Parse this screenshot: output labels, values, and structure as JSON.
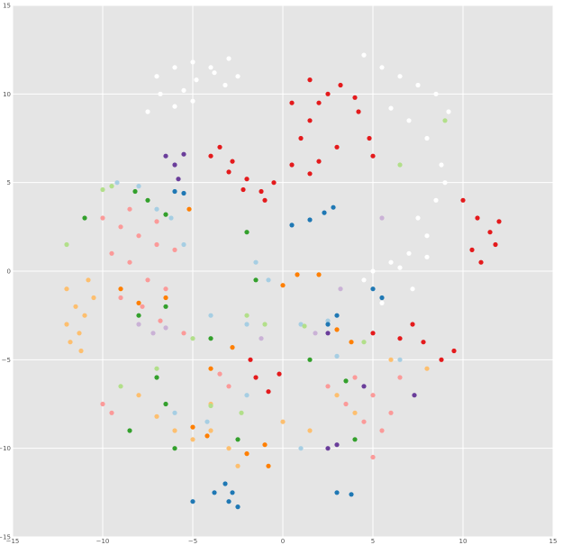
{
  "chart_data": {
    "type": "scatter",
    "title": "",
    "xlabel": "",
    "ylabel": "",
    "xlim": [
      -15,
      15
    ],
    "ylim": [
      -15,
      15
    ],
    "xticks": [
      -15,
      -10,
      -5,
      0,
      5,
      10,
      15
    ],
    "yticks": [
      -15,
      -10,
      -5,
      0,
      5,
      10,
      15
    ],
    "xtick_labels": [
      "−15",
      "−10",
      "−5",
      "0",
      "5",
      "10",
      "15"
    ],
    "ytick_labels": [
      "−15",
      "−10",
      "−5",
      "0",
      "5",
      "10",
      "15"
    ],
    "grid": true,
    "background": "#e5e5e5",
    "grid_color": "#ffffff",
    "series": [
      {
        "color": "#ffffff",
        "points": [
          [
            -7,
            11
          ],
          [
            -6,
            11.5
          ],
          [
            -5,
            11.8
          ],
          [
            -4,
            11.5
          ],
          [
            -3,
            12
          ],
          [
            -2.5,
            11
          ],
          [
            -5.5,
            10.2
          ],
          [
            -6.8,
            10
          ],
          [
            -4.8,
            10.8
          ],
          [
            -3.2,
            10.5
          ],
          [
            -7.5,
            9
          ],
          [
            -6,
            9.3
          ],
          [
            -5,
            9.6
          ],
          [
            -3.8,
            11.2
          ],
          [
            4.5,
            12.2
          ],
          [
            5.5,
            11.5
          ],
          [
            6.5,
            11
          ],
          [
            7.5,
            10.5
          ],
          [
            8.5,
            10
          ],
          [
            9.2,
            9
          ],
          [
            6,
            9.2
          ],
          [
            7,
            8.5
          ],
          [
            8,
            7.5
          ],
          [
            8.8,
            6
          ],
          [
            9,
            5
          ],
          [
            8.5,
            4
          ],
          [
            7.5,
            3
          ],
          [
            8,
            2
          ],
          [
            7,
            1
          ],
          [
            6,
            0.5
          ],
          [
            5,
            0
          ],
          [
            4.5,
            -0.5
          ],
          [
            6.5,
            0.2
          ],
          [
            8,
            0.8
          ],
          [
            7.2,
            -1
          ],
          [
            5.5,
            -1.8
          ]
        ]
      },
      {
        "color": "#e41a1c",
        "points": [
          [
            -3.5,
            7
          ],
          [
            -2.8,
            6.2
          ],
          [
            -2,
            5.2
          ],
          [
            -1.2,
            4.5
          ],
          [
            -4,
            6.5
          ],
          [
            -3,
            5.6
          ],
          [
            -2.2,
            4.6
          ],
          [
            -1,
            4
          ],
          [
            -0.5,
            5
          ],
          [
            0.5,
            6
          ],
          [
            1,
            7.5
          ],
          [
            1.5,
            8.5
          ],
          [
            2,
            9.5
          ],
          [
            2.5,
            10
          ],
          [
            3.2,
            10.5
          ],
          [
            4,
            9.8
          ],
          [
            4.2,
            9
          ],
          [
            4.8,
            7.5
          ],
          [
            5,
            6.5
          ],
          [
            3,
            7
          ],
          [
            2,
            6.2
          ],
          [
            1.5,
            5.5
          ],
          [
            0.5,
            9.5
          ],
          [
            1.5,
            10.8
          ],
          [
            10,
            4
          ],
          [
            10.8,
            3
          ],
          [
            11.5,
            2.2
          ],
          [
            11.8,
            1.5
          ],
          [
            11,
            0.5
          ],
          [
            12,
            2.8
          ],
          [
            10.5,
            1.2
          ],
          [
            -1.5,
            -6
          ],
          [
            -0.8,
            -6.8
          ],
          [
            -0.2,
            -5.8
          ],
          [
            -1.8,
            -5
          ],
          [
            5,
            -3.5
          ],
          [
            6.5,
            -3.8
          ],
          [
            7.8,
            -4
          ],
          [
            8.8,
            -5
          ],
          [
            9.5,
            -4.5
          ],
          [
            7.2,
            -3
          ]
        ]
      },
      {
        "color": "#fb9a99",
        "points": [
          [
            -10,
            3
          ],
          [
            -9,
            2.5
          ],
          [
            -8,
            2
          ],
          [
            -7,
            1.5
          ],
          [
            -9.5,
            1
          ],
          [
            -8.5,
            0.5
          ],
          [
            -7.5,
            -0.5
          ],
          [
            -6.5,
            -1
          ],
          [
            -9,
            -1.5
          ],
          [
            -7.8,
            -2
          ],
          [
            -6.8,
            -2.8
          ],
          [
            -5.5,
            -3.5
          ],
          [
            -8.5,
            3.5
          ],
          [
            -7,
            2.8
          ],
          [
            -6,
            1.2
          ],
          [
            -10,
            -7.5
          ],
          [
            -9.5,
            -8
          ],
          [
            -3.5,
            -5.8
          ],
          [
            -3,
            -6.5
          ],
          [
            4,
            -6
          ],
          [
            5,
            -7
          ],
          [
            6,
            -8
          ],
          [
            5.5,
            -9
          ],
          [
            4.5,
            -8.5
          ],
          [
            3.5,
            -7.5
          ],
          [
            6.5,
            -6
          ],
          [
            2.5,
            -6.5
          ],
          [
            5,
            -10.5
          ]
        ]
      },
      {
        "color": "#fdbf6f",
        "points": [
          [
            -12,
            -1
          ],
          [
            -11.5,
            -2
          ],
          [
            -12,
            -3
          ],
          [
            -11.8,
            -4
          ],
          [
            -11.2,
            -4.5
          ],
          [
            -11,
            -2.5
          ],
          [
            -10.5,
            -1.5
          ],
          [
            -11.3,
            -3.5
          ],
          [
            -10.8,
            -0.5
          ],
          [
            -8,
            -7
          ],
          [
            -7,
            -8.2
          ],
          [
            -6,
            -9
          ],
          [
            -5,
            -9.5
          ],
          [
            -4,
            -9
          ],
          [
            -3,
            -10
          ],
          [
            -2.5,
            -11
          ],
          [
            -4,
            -7.5
          ],
          [
            0,
            -8.5
          ],
          [
            1.5,
            -9
          ],
          [
            3,
            -7
          ],
          [
            4,
            -8
          ],
          [
            6,
            -5
          ],
          [
            8,
            -5.5
          ]
        ]
      },
      {
        "color": "#a6cee3",
        "points": [
          [
            -9.2,
            5
          ],
          [
            -8,
            4.8
          ],
          [
            -7,
            3.5
          ],
          [
            -6.2,
            3
          ],
          [
            -5.5,
            1.5
          ],
          [
            -1.5,
            0.5
          ],
          [
            -0.8,
            -0.5
          ],
          [
            -4,
            -2.5
          ],
          [
            -2,
            -3
          ],
          [
            1,
            -3
          ],
          [
            2.5,
            -2.8
          ],
          [
            -6,
            -8
          ],
          [
            -4.2,
            -8.5
          ],
          [
            -2,
            -7
          ],
          [
            1,
            -10
          ],
          [
            3,
            -4.8
          ],
          [
            6.5,
            -5
          ]
        ]
      },
      {
        "color": "#33a02c",
        "points": [
          [
            -8.2,
            4.5
          ],
          [
            -7.5,
            4
          ],
          [
            -6.5,
            3.2
          ],
          [
            -11,
            3
          ],
          [
            -8,
            -2.5
          ],
          [
            -6.5,
            -2
          ],
          [
            -4,
            -3.8
          ],
          [
            -1.5,
            -0.5
          ],
          [
            -7,
            -6
          ],
          [
            -6.5,
            -7.5
          ],
          [
            -8.5,
            -9
          ],
          [
            -6,
            -10
          ],
          [
            -2.5,
            -9.5
          ],
          [
            1.5,
            -5
          ],
          [
            3.5,
            -6.2
          ],
          [
            4,
            -9.5
          ],
          [
            -2,
            2.2
          ]
        ]
      },
      {
        "color": "#ff7f00",
        "points": [
          [
            -9,
            -1
          ],
          [
            -8,
            -1.8
          ],
          [
            -6.5,
            -1.5
          ],
          [
            -5.2,
            3.5
          ],
          [
            -4,
            -5.5
          ],
          [
            -2.8,
            -4.3
          ],
          [
            0,
            -0.8
          ],
          [
            0.8,
            -0.2
          ],
          [
            2,
            -0.2
          ],
          [
            3,
            -3.3
          ],
          [
            3.8,
            -4
          ],
          [
            -5,
            -8.8
          ],
          [
            -4.2,
            -9.3
          ],
          [
            -1,
            -9.8
          ],
          [
            -0.8,
            -11
          ],
          [
            -2,
            -10.3
          ]
        ]
      },
      {
        "color": "#1f78b4",
        "points": [
          [
            0.5,
            2.6
          ],
          [
            1.5,
            2.9
          ],
          [
            2.3,
            3.3
          ],
          [
            2.8,
            3.6
          ],
          [
            5,
            -1
          ],
          [
            5.5,
            -1.5
          ],
          [
            3,
            -2.5
          ],
          [
            2.5,
            -3
          ],
          [
            -6,
            4.5
          ],
          [
            -5.5,
            4.4
          ],
          [
            -3,
            -13
          ],
          [
            -2.8,
            -12.5
          ],
          [
            -3.2,
            -12
          ],
          [
            -2.5,
            -13.3
          ],
          [
            -3.8,
            -12.5
          ],
          [
            -5,
            -13
          ],
          [
            3,
            -12.5
          ],
          [
            3.8,
            -12.6
          ]
        ]
      },
      {
        "color": "#6a3d9a",
        "points": [
          [
            -6.5,
            6.5
          ],
          [
            -5.5,
            6.6
          ],
          [
            -6,
            6
          ],
          [
            -5.8,
            5.2
          ],
          [
            2.5,
            -3.5
          ],
          [
            4.5,
            -6.5
          ],
          [
            7.3,
            -7
          ],
          [
            2.5,
            -10
          ],
          [
            3,
            -9.8
          ]
        ]
      },
      {
        "color": "#b2df8a",
        "points": [
          [
            -10,
            4.6
          ],
          [
            -9.5,
            4.8
          ],
          [
            -2,
            -2.5
          ],
          [
            -1,
            -3
          ],
          [
            1.2,
            -3.1
          ],
          [
            -5,
            -3.8
          ],
          [
            -7,
            -5.5
          ],
          [
            -9,
            -6.5
          ],
          [
            -4,
            -7.6
          ],
          [
            -2.3,
            -8
          ],
          [
            4.5,
            -4
          ],
          [
            6.5,
            6
          ],
          [
            -12,
            1.5
          ],
          [
            9,
            8.5
          ]
        ]
      },
      {
        "color": "#cab2d6",
        "points": [
          [
            -8,
            -3
          ],
          [
            -7.2,
            -3.5
          ],
          [
            -6.5,
            -3.2
          ],
          [
            -1.2,
            -3.8
          ],
          [
            1.8,
            -3.5
          ],
          [
            3.2,
            -1
          ],
          [
            5.5,
            3
          ]
        ]
      }
    ]
  }
}
